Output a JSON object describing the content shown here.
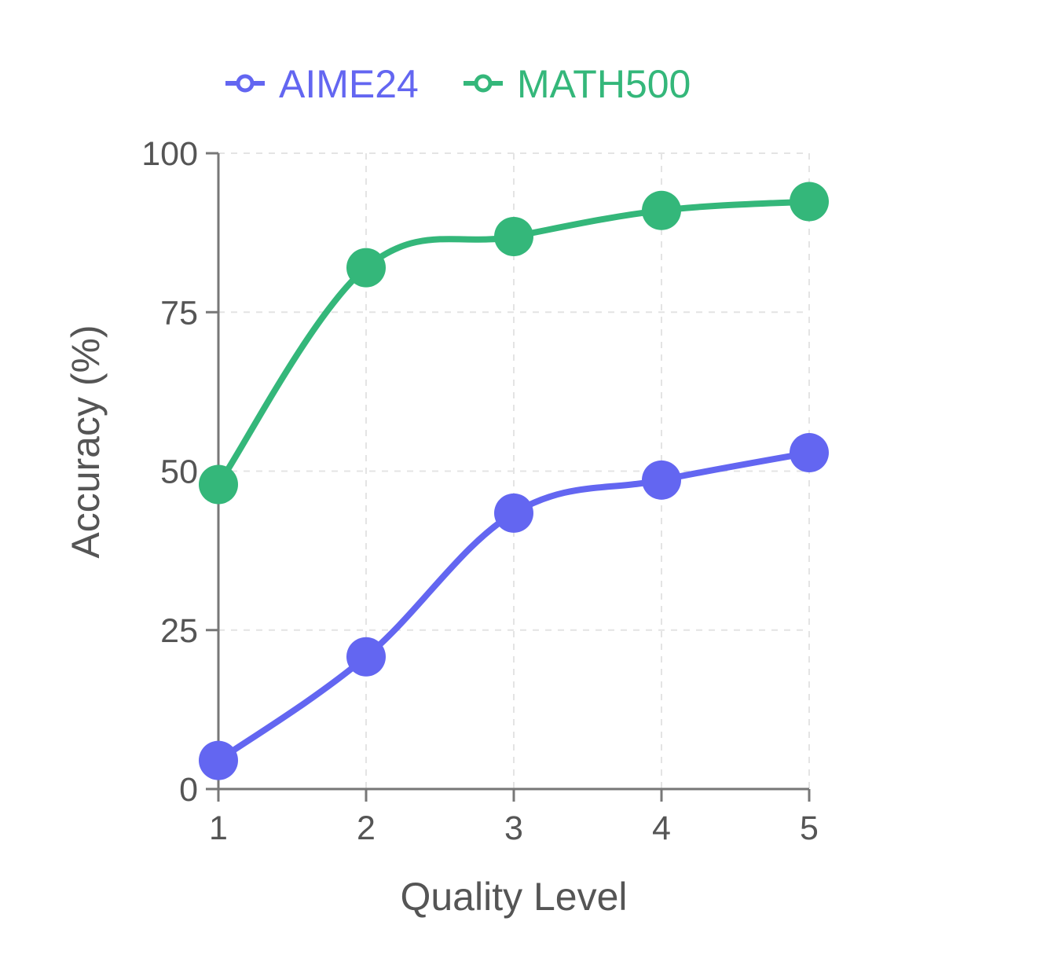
{
  "chart_data": {
    "type": "line",
    "x": [
      1,
      2,
      3,
      4,
      5
    ],
    "series": [
      {
        "name": "AIME24",
        "color": "#6366f1",
        "values": [
          4.5,
          20.8,
          43.4,
          48.6,
          52.9
        ]
      },
      {
        "name": "MATH500",
        "color": "#34b77a",
        "values": [
          47.9,
          82.0,
          86.9,
          91.0,
          92.4
        ]
      }
    ],
    "xlabel": "Quality Level",
    "ylabel": "Accuracy (%)",
    "xticks": [
      "1",
      "2",
      "3",
      "4",
      "5"
    ],
    "yticks": [
      "0",
      "25",
      "50",
      "75",
      "100"
    ],
    "ylim": [
      0,
      100
    ],
    "grid": true,
    "legend": "top"
  }
}
